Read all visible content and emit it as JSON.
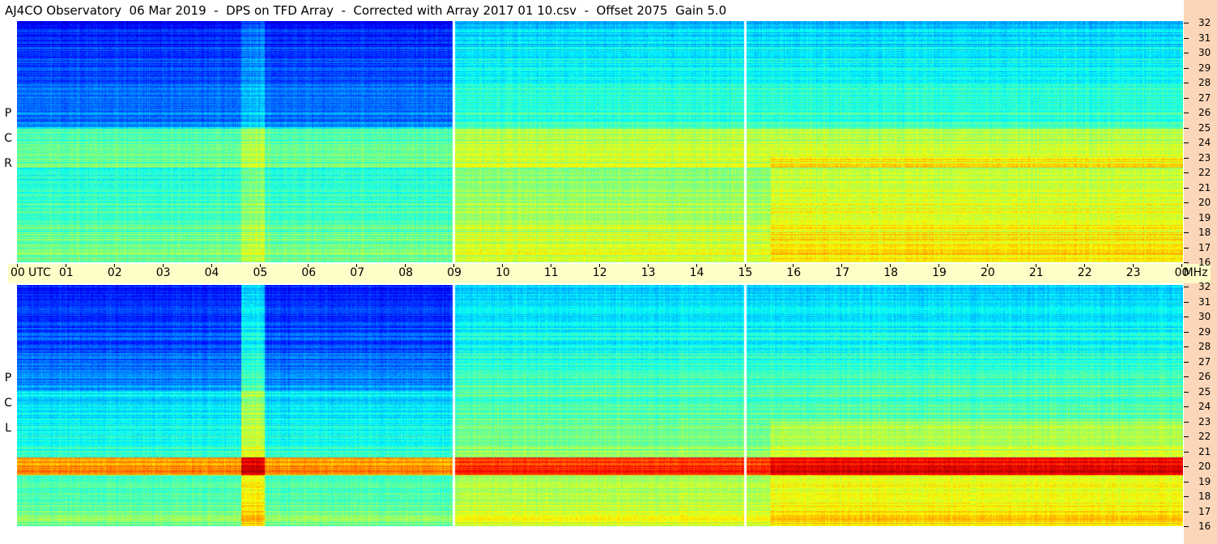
{
  "header": {
    "title": "AJ4CO Observatory  06 Mar 2019  -  DPS on TFD Array  -  Corrected with Array 2017 01 10.csv  -  Offset 2075  Gain 5.0"
  },
  "panels": {
    "top": {
      "label_letters": [
        "R",
        "C",
        "P"
      ]
    },
    "bottom": {
      "label_letters": [
        "L",
        "C",
        "P"
      ]
    }
  },
  "time_axis": {
    "labels": [
      "00",
      "UTC",
      "01",
      "02",
      "03",
      "04",
      "05",
      "06",
      "07",
      "08",
      "09",
      "10",
      "11",
      "12",
      "13",
      "14",
      "15",
      "16",
      "17",
      "18",
      "19",
      "20",
      "21",
      "22",
      "23",
      "00",
      "MHz"
    ]
  },
  "frequency_axis": {
    "labels": [
      "32",
      "31",
      "30",
      "29",
      "28",
      "27",
      "26",
      "25",
      "24",
      "23",
      "22",
      "21",
      "20",
      "19",
      "18",
      "17",
      "16"
    ]
  },
  "colors": {
    "background": "#ffffff",
    "time_bar": "#fffec8",
    "freq_strip": "#fcd6b8"
  }
}
